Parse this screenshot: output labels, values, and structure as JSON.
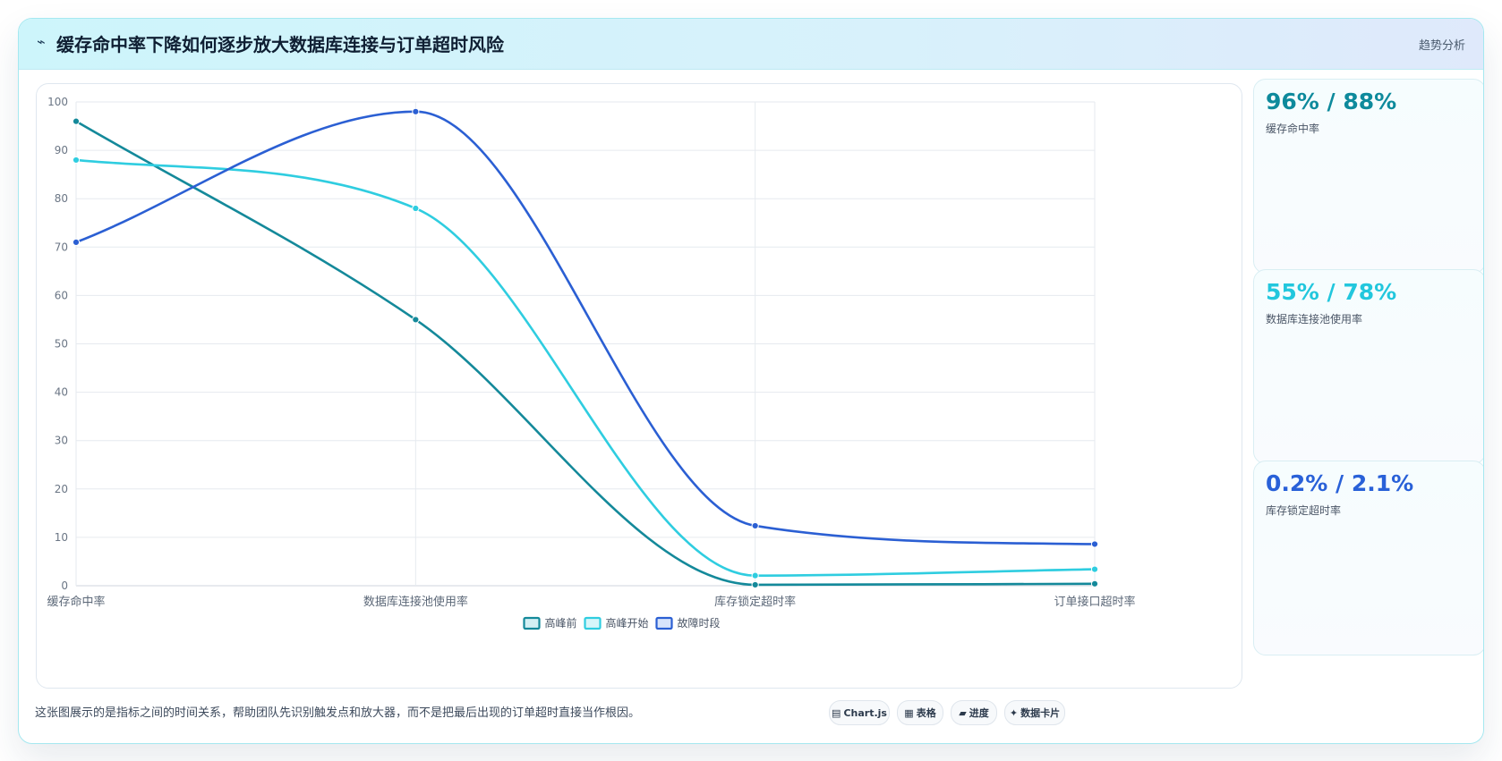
{
  "header": {
    "icon": "⌁",
    "title": "缓存命中率下降如何逐步放大数据库连接与订单超时风险",
    "badge": "趋势分析"
  },
  "stats": [
    {
      "value": "96% / 88%",
      "label": "缓存命中率",
      "color": "#0e8a9c"
    },
    {
      "value": "55% / 78%",
      "label": "数据库连接池使用率",
      "color": "#22c7dd"
    },
    {
      "value": "0.2% / 2.1%",
      "label": "库存锁定超时率",
      "color": "#2961d8"
    }
  ],
  "footnote": "这张图展示的是指标之间的时间关系，帮助团队先识别触发点和放大器，而不是把最后出现的订单超时直接当作根因。",
  "chips": [
    {
      "icon": "▤",
      "label": "Chart.js"
    },
    {
      "icon": "▦",
      "label": "表格"
    },
    {
      "icon": "▰",
      "label": "进度"
    },
    {
      "icon": "✦",
      "label": "数据卡片"
    }
  ],
  "chart_data": {
    "type": "line",
    "categories": [
      "缓存命中率",
      "数据库连接池使用率",
      "库存锁定超时率",
      "订单接口超时率"
    ],
    "ylim": [
      0,
      100
    ],
    "yticks": [
      0,
      10,
      20,
      30,
      40,
      50,
      60,
      70,
      80,
      90,
      100
    ],
    "grid": true,
    "legend_position": "bottom",
    "series": [
      {
        "name": "高峰前",
        "color": "#14899a",
        "fill": "#d3f0f4",
        "values": [
          96,
          55,
          0.2,
          0.4
        ]
      },
      {
        "name": "高峰开始",
        "color": "#2fcde0",
        "fill": "#d7f6fa",
        "values": [
          88,
          78,
          2.1,
          3.4
        ]
      },
      {
        "name": "故障时段",
        "color": "#2b5fd3",
        "fill": "#d8e4fb",
        "values": [
          71,
          98,
          12.4,
          8.6
        ]
      }
    ]
  }
}
